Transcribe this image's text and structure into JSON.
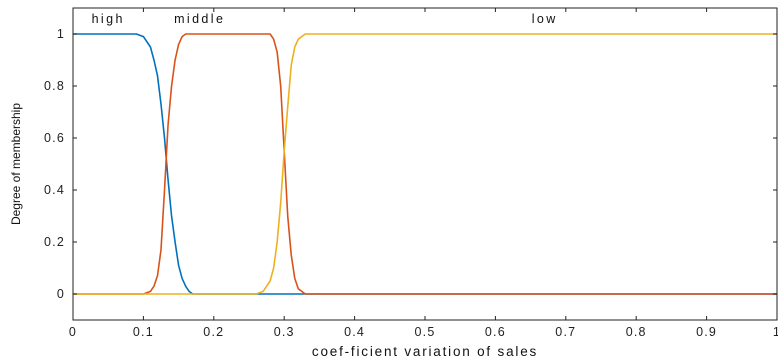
{
  "chart_data": {
    "type": "line",
    "title": "",
    "xlabel": "coef-ficient variation of sales",
    "ylabel": "Degree of membership",
    "xlim": [
      0,
      1
    ],
    "ylim": [
      -0.1,
      1.1
    ],
    "x_ticks": [
      0,
      0.1,
      0.2,
      0.3,
      0.4,
      0.5,
      0.6,
      0.7,
      0.8,
      0.9,
      1
    ],
    "x_tick_labels": [
      "0",
      "0.1",
      "0.2",
      "0.3",
      "0.4",
      "0.5",
      "0.6",
      "0.7",
      "0.8",
      "0.9",
      "1"
    ],
    "y_ticks": [
      0,
      0.2,
      0.4,
      0.6,
      0.8,
      1
    ],
    "y_tick_labels": [
      "0",
      "0.2",
      "0.4",
      "0.6",
      "0.8",
      "1"
    ],
    "grid": false,
    "legend": "none",
    "region_labels": [
      {
        "text": "high",
        "x": 0.05
      },
      {
        "text": "middle",
        "x": 0.18
      },
      {
        "text": "low",
        "x": 0.67
      }
    ],
    "series": [
      {
        "color": "#0072BD",
        "x": [
          0,
          0.09,
          0.1,
          0.11,
          0.115,
          0.12,
          0.125,
          0.13,
          0.135,
          0.14,
          0.145,
          0.15,
          0.155,
          0.16,
          0.165,
          0.17,
          0.3,
          0.35,
          1
        ],
        "y": [
          1,
          1,
          0.99,
          0.95,
          0.9,
          0.84,
          0.73,
          0.6,
          0.44,
          0.3,
          0.2,
          0.11,
          0.06,
          0.03,
          0.01,
          0,
          0,
          0,
          0
        ]
      },
      {
        "color": "#D95319",
        "x": [
          0,
          0.1,
          0.11,
          0.115,
          0.12,
          0.125,
          0.13,
          0.135,
          0.14,
          0.145,
          0.15,
          0.155,
          0.16,
          0.17,
          0.28,
          0.285,
          0.29,
          0.295,
          0.3,
          0.305,
          0.31,
          0.315,
          0.32,
          0.325,
          0.33,
          0.34,
          1
        ],
        "y": [
          0,
          0,
          0.01,
          0.03,
          0.07,
          0.17,
          0.4,
          0.65,
          0.8,
          0.9,
          0.96,
          0.99,
          1,
          1,
          1,
          0.98,
          0.93,
          0.8,
          0.55,
          0.3,
          0.15,
          0.06,
          0.02,
          0.01,
          0,
          0,
          0
        ]
      },
      {
        "color": "#EDB120",
        "x": [
          0,
          0.26,
          0.27,
          0.275,
          0.28,
          0.285,
          0.29,
          0.295,
          0.3,
          0.305,
          0.31,
          0.315,
          0.32,
          0.33,
          0.34,
          1
        ],
        "y": [
          0,
          0,
          0.01,
          0.03,
          0.05,
          0.1,
          0.2,
          0.35,
          0.55,
          0.72,
          0.88,
          0.95,
          0.98,
          1,
          1,
          1
        ]
      }
    ]
  }
}
